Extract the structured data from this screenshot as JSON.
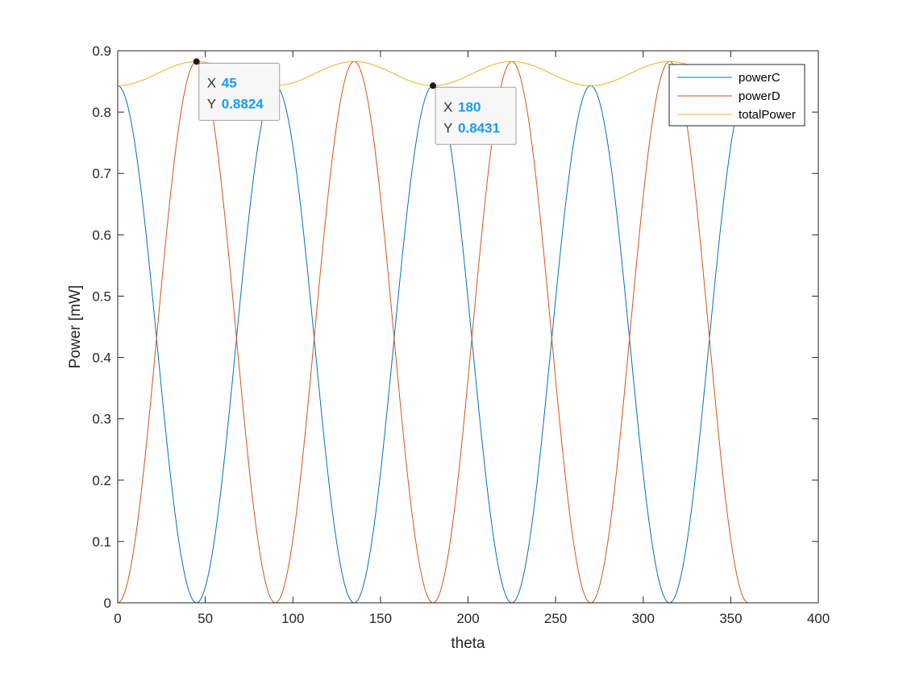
{
  "chart_data": {
    "type": "line",
    "title": "",
    "xlabel": "theta",
    "ylabel": "Power [mW]",
    "xlim": [
      0,
      400
    ],
    "ylim": [
      0,
      0.9
    ],
    "xticks": [
      "0",
      "50",
      "100",
      "150",
      "200",
      "250",
      "300",
      "350",
      "400"
    ],
    "yticks": [
      "0",
      "0.1",
      "0.2",
      "0.3",
      "0.4",
      "0.5",
      "0.6",
      "0.7",
      "0.8",
      "0.9"
    ],
    "grid": false,
    "legend_position": "top-right",
    "x_range": [
      0,
      360
    ],
    "series": [
      {
        "name": "powerC",
        "color": "#0072bd",
        "model": "0.8431 * cos^2(2*theta deg)",
        "x": [
          0,
          22.5,
          45,
          67.5,
          90,
          112.5,
          135,
          157.5,
          180,
          202.5,
          225,
          247.5,
          270,
          292.5,
          315,
          337.5,
          360
        ],
        "y": [
          0.8431,
          0.4216,
          0,
          0.4216,
          0.8431,
          0.4216,
          0,
          0.4216,
          0.8431,
          0.4216,
          0,
          0.4216,
          0.8431,
          0.4216,
          0,
          0.4216,
          0.8431
        ]
      },
      {
        "name": "powerD",
        "color": "#d95319",
        "model": "0.8824 * sin^2(2*theta deg)",
        "x": [
          0,
          22.5,
          45,
          67.5,
          90,
          112.5,
          135,
          157.5,
          180,
          202.5,
          225,
          247.5,
          270,
          292.5,
          315,
          337.5,
          360
        ],
        "y": [
          0,
          0.4412,
          0.8824,
          0.4412,
          0,
          0.4412,
          0.8824,
          0.4412,
          0,
          0.4412,
          0.8824,
          0.4412,
          0,
          0.4412,
          0.8824,
          0.4412,
          0
        ]
      },
      {
        "name": "totalPower",
        "color": "#edb120",
        "model": "powerC + powerD",
        "x": [
          0,
          22.5,
          45,
          67.5,
          90,
          112.5,
          135,
          157.5,
          180,
          202.5,
          225,
          247.5,
          270,
          292.5,
          315,
          337.5,
          360
        ],
        "y": [
          0.8431,
          0.8628,
          0.8824,
          0.8628,
          0.8431,
          0.8628,
          0.8824,
          0.8628,
          0.8431,
          0.8628,
          0.8824,
          0.8628,
          0.8431,
          0.8628,
          0.8824,
          0.8628,
          0.8431
        ]
      }
    ],
    "datatips": [
      {
        "x_label": "X",
        "x_value": "45",
        "y_label": "Y",
        "y_value": "0.8824",
        "x": 45,
        "y": 0.8824
      },
      {
        "x_label": "X",
        "x_value": "180",
        "y_label": "Y",
        "y_value": "0.8431",
        "x": 180,
        "y": 0.8431
      }
    ]
  }
}
